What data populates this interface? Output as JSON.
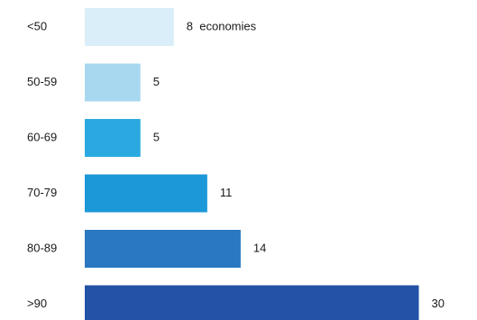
{
  "chart_data": {
    "type": "bar",
    "orientation": "horizontal",
    "categories": [
      "<50",
      "50-59",
      "60-69",
      "70-79",
      "80-89",
      ">90"
    ],
    "values": [
      8,
      5,
      5,
      11,
      14,
      30
    ],
    "value_labels": [
      "8  economies",
      "5",
      "5",
      "11",
      "14",
      "30"
    ],
    "colors": [
      "#d9eef8",
      "#a8d8f0",
      "#2aa9e0",
      "#1b98d8",
      "#2a78c0",
      "#2352a6"
    ],
    "title": "",
    "xlabel": "",
    "ylabel": "",
    "xlim": [
      0,
      30
    ],
    "grid": false,
    "legend": "none"
  }
}
